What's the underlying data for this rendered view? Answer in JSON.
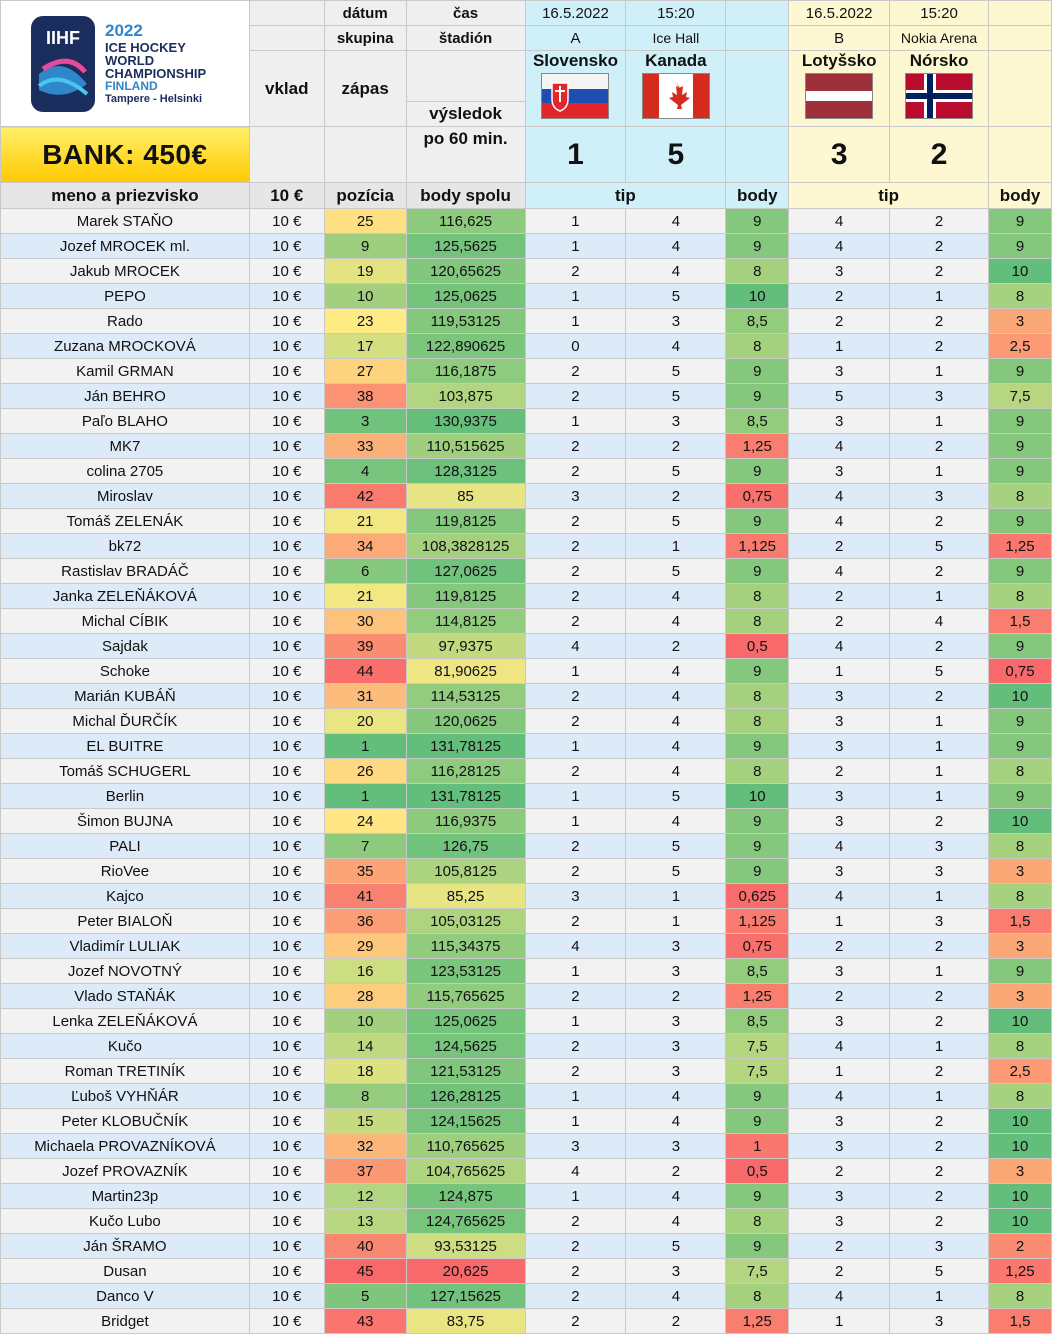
{
  "header": {
    "datum_label": "dátum",
    "cas_label": "čas",
    "skupina_label": "skupina",
    "stadion_label": "štadión",
    "vklad_label": "vklad",
    "zapas_label": "zápas",
    "vysledok_label_1": "výsledok",
    "vysledok_label_2": "po 60 min.",
    "bank": "BANK: 450€",
    "logo": {
      "org": "IIHF",
      "year": "2022",
      "line1": "ICE HOCKEY",
      "line2": "WORLD",
      "line3": "CHAMPIONSHIP",
      "country": "FINLAND",
      "cities": "Tampere - Helsinki"
    },
    "match1": {
      "date": "16.5.2022",
      "time": "15:20",
      "group": "A",
      "venue": "Ice Hall",
      "home": "Slovensko",
      "away": "Kanada",
      "home_score": "1",
      "away_score": "5"
    },
    "match2": {
      "date": "16.5.2022",
      "time": "15:20",
      "group": "B",
      "venue": "Nokia Arena",
      "home": "Lotyšsko",
      "away": "Nórsko",
      "home_score": "3",
      "away_score": "2"
    }
  },
  "columns": {
    "name": "meno a priezvisko",
    "stake": "10 €",
    "position": "pozícia",
    "total": "body spolu",
    "tip1": "tip",
    "points1": "body",
    "tip2": "tip",
    "points2": "body"
  },
  "rows": [
    {
      "name": "Marek STAŇO",
      "stake": "10 €",
      "pos": "25",
      "total": "116,625",
      "t1h": "1",
      "t1a": "4",
      "p1": "9",
      "t2h": "4",
      "t2a": "2",
      "p2": "9"
    },
    {
      "name": "Jozef MROCEK ml.",
      "stake": "10 €",
      "pos": "9",
      "total": "125,5625",
      "t1h": "1",
      "t1a": "4",
      "p1": "9",
      "t2h": "4",
      "t2a": "2",
      "p2": "9"
    },
    {
      "name": "Jakub MROCEK",
      "stake": "10 €",
      "pos": "19",
      "total": "120,65625",
      "t1h": "2",
      "t1a": "4",
      "p1": "8",
      "t2h": "3",
      "t2a": "2",
      "p2": "10"
    },
    {
      "name": "PEPO",
      "stake": "10 €",
      "pos": "10",
      "total": "125,0625",
      "t1h": "1",
      "t1a": "5",
      "p1": "10",
      "t2h": "2",
      "t2a": "1",
      "p2": "8"
    },
    {
      "name": "Rado",
      "stake": "10 €",
      "pos": "23",
      "total": "119,53125",
      "t1h": "1",
      "t1a": "3",
      "p1": "8,5",
      "t2h": "2",
      "t2a": "2",
      "p2": "3"
    },
    {
      "name": "Zuzana MROCKOVÁ",
      "stake": "10 €",
      "pos": "17",
      "total": "122,890625",
      "t1h": "0",
      "t1a": "4",
      "p1": "8",
      "t2h": "1",
      "t2a": "2",
      "p2": "2,5"
    },
    {
      "name": "Kamil GRMAN",
      "stake": "10 €",
      "pos": "27",
      "total": "116,1875",
      "t1h": "2",
      "t1a": "5",
      "p1": "9",
      "t2h": "3",
      "t2a": "1",
      "p2": "9"
    },
    {
      "name": "Ján BEHRO",
      "stake": "10 €",
      "pos": "38",
      "total": "103,875",
      "t1h": "2",
      "t1a": "5",
      "p1": "9",
      "t2h": "5",
      "t2a": "3",
      "p2": "7,5"
    },
    {
      "name": "Paľo BLAHO",
      "stake": "10 €",
      "pos": "3",
      "total": "130,9375",
      "t1h": "1",
      "t1a": "3",
      "p1": "8,5",
      "t2h": "3",
      "t2a": "1",
      "p2": "9"
    },
    {
      "name": "MK7",
      "stake": "10 €",
      "pos": "33",
      "total": "110,515625",
      "t1h": "2",
      "t1a": "2",
      "p1": "1,25",
      "t2h": "4",
      "t2a": "2",
      "p2": "9"
    },
    {
      "name": "colina 2705",
      "stake": "10 €",
      "pos": "4",
      "total": "128,3125",
      "t1h": "2",
      "t1a": "5",
      "p1": "9",
      "t2h": "3",
      "t2a": "1",
      "p2": "9"
    },
    {
      "name": "Miroslav",
      "stake": "10 €",
      "pos": "42",
      "total": "85",
      "t1h": "3",
      "t1a": "2",
      "p1": "0,75",
      "t2h": "4",
      "t2a": "3",
      "p2": "8"
    },
    {
      "name": "Tomáš ZELENÁK",
      "stake": "10 €",
      "pos": "21",
      "total": "119,8125",
      "t1h": "2",
      "t1a": "5",
      "p1": "9",
      "t2h": "4",
      "t2a": "2",
      "p2": "9"
    },
    {
      "name": "bk72",
      "stake": "10 €",
      "pos": "34",
      "total": "108,3828125",
      "t1h": "2",
      "t1a": "1",
      "p1": "1,125",
      "t2h": "2",
      "t2a": "5",
      "p2": "1,25"
    },
    {
      "name": "Rastislav BRADÁČ",
      "stake": "10 €",
      "pos": "6",
      "total": "127,0625",
      "t1h": "2",
      "t1a": "5",
      "p1": "9",
      "t2h": "4",
      "t2a": "2",
      "p2": "9"
    },
    {
      "name": "Janka ZELEŇÁKOVÁ",
      "stake": "10 €",
      "pos": "21",
      "total": "119,8125",
      "t1h": "2",
      "t1a": "4",
      "p1": "8",
      "t2h": "2",
      "t2a": "1",
      "p2": "8"
    },
    {
      "name": "Michal CÍBIK",
      "stake": "10 €",
      "pos": "30",
      "total": "114,8125",
      "t1h": "2",
      "t1a": "4",
      "p1": "8",
      "t2h": "2",
      "t2a": "4",
      "p2": "1,5"
    },
    {
      "name": "Sajdak",
      "stake": "10 €",
      "pos": "39",
      "total": "97,9375",
      "t1h": "4",
      "t1a": "2",
      "p1": "0,5",
      "t2h": "4",
      "t2a": "2",
      "p2": "9"
    },
    {
      "name": "Schoke",
      "stake": "10 €",
      "pos": "44",
      "total": "81,90625",
      "t1h": "1",
      "t1a": "4",
      "p1": "9",
      "t2h": "1",
      "t2a": "5",
      "p2": "0,75"
    },
    {
      "name": "Marián KUBÁŇ",
      "stake": "10 €",
      "pos": "31",
      "total": "114,53125",
      "t1h": "2",
      "t1a": "4",
      "p1": "8",
      "t2h": "3",
      "t2a": "2",
      "p2": "10"
    },
    {
      "name": "Michal ĎURČÍK",
      "stake": "10 €",
      "pos": "20",
      "total": "120,0625",
      "t1h": "2",
      "t1a": "4",
      "p1": "8",
      "t2h": "3",
      "t2a": "1",
      "p2": "9"
    },
    {
      "name": "EL BUITRE",
      "stake": "10 €",
      "pos": "1",
      "total": "131,78125",
      "t1h": "1",
      "t1a": "4",
      "p1": "9",
      "t2h": "3",
      "t2a": "1",
      "p2": "9"
    },
    {
      "name": "Tomáš SCHUGERL",
      "stake": "10 €",
      "pos": "26",
      "total": "116,28125",
      "t1h": "2",
      "t1a": "4",
      "p1": "8",
      "t2h": "2",
      "t2a": "1",
      "p2": "8"
    },
    {
      "name": "Berlin",
      "stake": "10 €",
      "pos": "1",
      "total": "131,78125",
      "t1h": "1",
      "t1a": "5",
      "p1": "10",
      "t2h": "3",
      "t2a": "1",
      "p2": "9"
    },
    {
      "name": "Šimon BUJNA",
      "stake": "10 €",
      "pos": "24",
      "total": "116,9375",
      "t1h": "1",
      "t1a": "4",
      "p1": "9",
      "t2h": "3",
      "t2a": "2",
      "p2": "10"
    },
    {
      "name": "PALI",
      "stake": "10 €",
      "pos": "7",
      "total": "126,75",
      "t1h": "2",
      "t1a": "5",
      "p1": "9",
      "t2h": "4",
      "t2a": "3",
      "p2": "8"
    },
    {
      "name": "RioVee",
      "stake": "10 €",
      "pos": "35",
      "total": "105,8125",
      "t1h": "2",
      "t1a": "5",
      "p1": "9",
      "t2h": "3",
      "t2a": "3",
      "p2": "3"
    },
    {
      "name": "Kajco",
      "stake": "10 €",
      "pos": "41",
      "total": "85,25",
      "t1h": "3",
      "t1a": "1",
      "p1": "0,625",
      "t2h": "4",
      "t2a": "1",
      "p2": "8"
    },
    {
      "name": "Peter BIALOŇ",
      "stake": "10 €",
      "pos": "36",
      "total": "105,03125",
      "t1h": "2",
      "t1a": "1",
      "p1": "1,125",
      "t2h": "1",
      "t2a": "3",
      "p2": "1,5"
    },
    {
      "name": "Vladimír LULIAK",
      "stake": "10 €",
      "pos": "29",
      "total": "115,34375",
      "t1h": "4",
      "t1a": "3",
      "p1": "0,75",
      "t2h": "2",
      "t2a": "2",
      "p2": "3"
    },
    {
      "name": "Jozef NOVOTNÝ",
      "stake": "10 €",
      "pos": "16",
      "total": "123,53125",
      "t1h": "1",
      "t1a": "3",
      "p1": "8,5",
      "t2h": "3",
      "t2a": "1",
      "p2": "9"
    },
    {
      "name": "Vlado STAŇÁK",
      "stake": "10 €",
      "pos": "28",
      "total": "115,765625",
      "t1h": "2",
      "t1a": "2",
      "p1": "1,25",
      "t2h": "2",
      "t2a": "2",
      "p2": "3"
    },
    {
      "name": "Lenka ZELEŇÁKOVÁ",
      "stake": "10 €",
      "pos": "10",
      "total": "125,0625",
      "t1h": "1",
      "t1a": "3",
      "p1": "8,5",
      "t2h": "3",
      "t2a": "2",
      "p2": "10"
    },
    {
      "name": "Kučo",
      "stake": "10 €",
      "pos": "14",
      "total": "124,5625",
      "t1h": "2",
      "t1a": "3",
      "p1": "7,5",
      "t2h": "4",
      "t2a": "1",
      "p2": "8"
    },
    {
      "name": "Roman TRETINÍK",
      "stake": "10 €",
      "pos": "18",
      "total": "121,53125",
      "t1h": "2",
      "t1a": "3",
      "p1": "7,5",
      "t2h": "1",
      "t2a": "2",
      "p2": "2,5"
    },
    {
      "name": "Ľuboš VYHŇÁR",
      "stake": "10 €",
      "pos": "8",
      "total": "126,28125",
      "t1h": "1",
      "t1a": "4",
      "p1": "9",
      "t2h": "4",
      "t2a": "1",
      "p2": "8"
    },
    {
      "name": "Peter KLOBUČNÍK",
      "stake": "10 €",
      "pos": "15",
      "total": "124,15625",
      "t1h": "1",
      "t1a": "4",
      "p1": "9",
      "t2h": "3",
      "t2a": "2",
      "p2": "10"
    },
    {
      "name": "Michaela PROVAZNÍKOVÁ",
      "stake": "10 €",
      "pos": "32",
      "total": "110,765625",
      "t1h": "3",
      "t1a": "3",
      "p1": "1",
      "t2h": "3",
      "t2a": "2",
      "p2": "10"
    },
    {
      "name": "Jozef PROVAZNÍK",
      "stake": "10 €",
      "pos": "37",
      "total": "104,765625",
      "t1h": "4",
      "t1a": "2",
      "p1": "0,5",
      "t2h": "2",
      "t2a": "2",
      "p2": "3"
    },
    {
      "name": "Martin23p",
      "stake": "10 €",
      "pos": "12",
      "total": "124,875",
      "t1h": "1",
      "t1a": "4",
      "p1": "9",
      "t2h": "3",
      "t2a": "2",
      "p2": "10"
    },
    {
      "name": "Kučo Lubo",
      "stake": "10 €",
      "pos": "13",
      "total": "124,765625",
      "t1h": "2",
      "t1a": "4",
      "p1": "8",
      "t2h": "3",
      "t2a": "2",
      "p2": "10"
    },
    {
      "name": "Ján ŠRAMO",
      "stake": "10 €",
      "pos": "40",
      "total": "93,53125",
      "t1h": "2",
      "t1a": "5",
      "p1": "9",
      "t2h": "2",
      "t2a": "3",
      "p2": "2"
    },
    {
      "name": "Dusan",
      "stake": "10 €",
      "pos": "45",
      "total": "20,625",
      "t1h": "2",
      "t1a": "3",
      "p1": "7,5",
      "t2h": "2",
      "t2a": "5",
      "p2": "1,25"
    },
    {
      "name": "Danco V",
      "stake": "10 €",
      "pos": "5",
      "total": "127,15625",
      "t1h": "2",
      "t1a": "4",
      "p1": "8",
      "t2h": "4",
      "t2a": "1",
      "p2": "8"
    },
    {
      "name": "Bridget",
      "stake": "10 €",
      "pos": "43",
      "total": "83,75",
      "t1h": "2",
      "t1a": "2",
      "p1": "1,25",
      "t2h": "1",
      "t2a": "3",
      "p2": "1,5"
    }
  ],
  "colors": {
    "scale_green": "#63be7b",
    "scale_yellow": "#ffeb84",
    "scale_red": "#f8696b",
    "bank_yellow": "#ffd400",
    "header_cyan": "#cfeff9",
    "header_cream": "#fdf7d2",
    "row_alt_blue": "#dcebf7"
  }
}
